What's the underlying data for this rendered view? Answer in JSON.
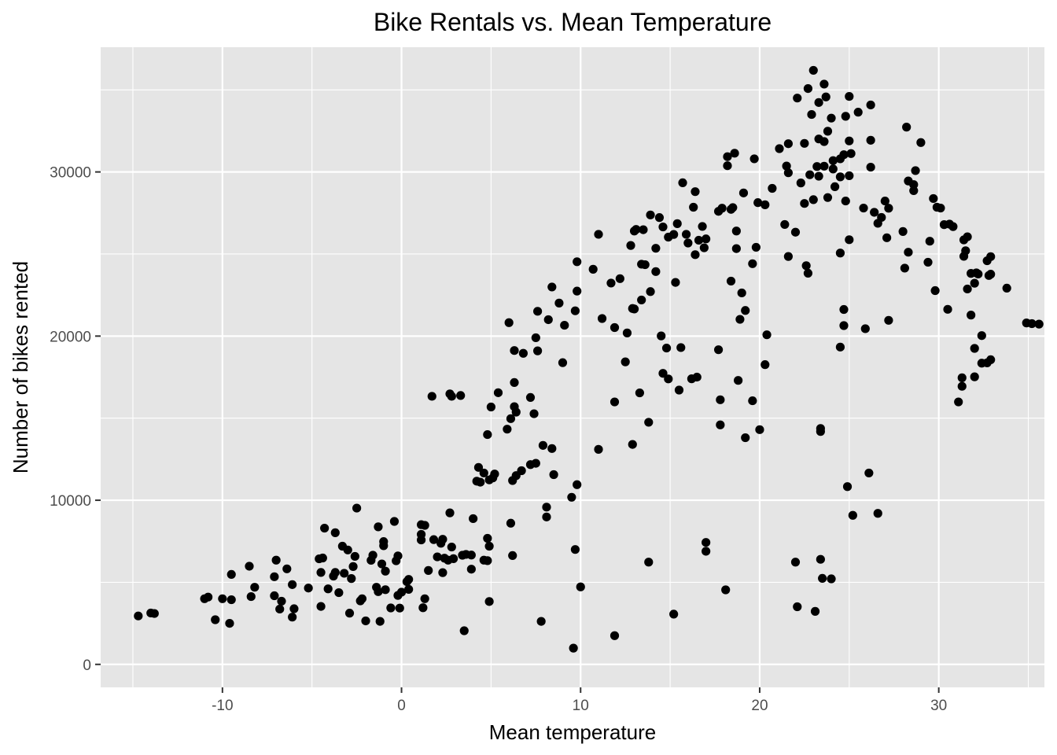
{
  "chart_data": {
    "type": "scatter",
    "title": "Bike Rentals vs. Mean Temperature",
    "xlabel": "Mean temperature",
    "ylabel": "Number of bikes rented",
    "xlim": [
      -16.8,
      35.9
    ],
    "ylim": [
      -1400,
      37600
    ],
    "x_ticks": [
      -10,
      0,
      10,
      20,
      30
    ],
    "y_ticks": [
      0,
      10000,
      20000,
      30000
    ],
    "x_tick_labels": [
      "-10",
      "0",
      "10",
      "20",
      "30"
    ],
    "y_tick_labels": [
      "0",
      "10000",
      "20000",
      "30000"
    ],
    "grid": true,
    "background": "#e5e5e5",
    "point_color": "#000000",
    "points": [
      [
        -14.7,
        2950
      ],
      [
        -14.0,
        3130
      ],
      [
        -13.8,
        3100
      ],
      [
        -11.0,
        4000
      ],
      [
        -10.8,
        4100
      ],
      [
        -10.4,
        2720
      ],
      [
        -10.0,
        4000
      ],
      [
        -9.5,
        5480
      ],
      [
        -9.5,
        3940
      ],
      [
        -9.6,
        2500
      ],
      [
        -8.5,
        5980
      ],
      [
        -8.4,
        4130
      ],
      [
        -8.2,
        4700
      ],
      [
        -7.1,
        5340
      ],
      [
        -7.0,
        6350
      ],
      [
        -7.1,
        4180
      ],
      [
        -6.8,
        3370
      ],
      [
        -6.7,
        3850
      ],
      [
        -6.4,
        5820
      ],
      [
        -6.1,
        4860
      ],
      [
        -6.1,
        2880
      ],
      [
        -6.0,
        3390
      ],
      [
        -5.2,
        4650
      ],
      [
        -4.6,
        6430
      ],
      [
        -4.5,
        3530
      ],
      [
        -4.5,
        5600
      ],
      [
        -4.4,
        6480
      ],
      [
        -4.3,
        8300
      ],
      [
        -4.1,
        4600
      ],
      [
        -3.7,
        8020
      ],
      [
        -3.8,
        5380
      ],
      [
        -3.7,
        5600
      ],
      [
        -3.5,
        4370
      ],
      [
        -3.3,
        7200
      ],
      [
        -3.2,
        5550
      ],
      [
        -3.0,
        6970
      ],
      [
        -2.9,
        3120
      ],
      [
        -2.8,
        5230
      ],
      [
        -2.6,
        6580
      ],
      [
        -2.5,
        9520
      ],
      [
        -2.7,
        5960
      ],
      [
        -2.3,
        3870
      ],
      [
        -2.2,
        4000
      ],
      [
        -2.0,
        2650
      ],
      [
        -1.7,
        6340
      ],
      [
        -1.6,
        6650
      ],
      [
        -1.4,
        4700
      ],
      [
        -1.3,
        8380
      ],
      [
        -1.3,
        4430
      ],
      [
        -1.2,
        2620
      ],
      [
        -1.1,
        6120
      ],
      [
        -1.0,
        7480
      ],
      [
        -1.0,
        7230
      ],
      [
        -0.9,
        5680
      ],
      [
        -0.9,
        4550
      ],
      [
        -0.6,
        3440
      ],
      [
        -0.4,
        8710
      ],
      [
        -0.3,
        6310
      ],
      [
        -0.2,
        6610
      ],
      [
        -0.2,
        4200
      ],
      [
        -0.1,
        3430
      ],
      [
        0.0,
        4400
      ],
      [
        0.3,
        5040
      ],
      [
        0.4,
        4570
      ],
      [
        0.4,
        5180
      ],
      [
        1.1,
        7920
      ],
      [
        1.1,
        8510
      ],
      [
        1.1,
        7580
      ],
      [
        1.2,
        3450
      ],
      [
        1.3,
        8470
      ],
      [
        1.3,
        4000
      ],
      [
        1.5,
        5720
      ],
      [
        1.7,
        16330
      ],
      [
        1.8,
        7600
      ],
      [
        2.0,
        6550
      ],
      [
        2.2,
        7380
      ],
      [
        2.3,
        7620
      ],
      [
        2.3,
        5590
      ],
      [
        2.4,
        6470
      ],
      [
        2.6,
        6350
      ],
      [
        2.7,
        16480
      ],
      [
        2.7,
        9230
      ],
      [
        2.8,
        16330
      ],
      [
        2.8,
        7150
      ],
      [
        2.9,
        6440
      ],
      [
        3.3,
        16380
      ],
      [
        3.4,
        6650
      ],
      [
        3.5,
        2050
      ],
      [
        3.6,
        6700
      ],
      [
        3.9,
        6660
      ],
      [
        3.9,
        5800
      ],
      [
        4.0,
        8880
      ],
      [
        4.2,
        11160
      ],
      [
        4.3,
        12000
      ],
      [
        4.4,
        11100
      ],
      [
        4.6,
        6350
      ],
      [
        4.6,
        11660
      ],
      [
        4.8,
        7680
      ],
      [
        4.8,
        6320
      ],
      [
        4.8,
        14000
      ],
      [
        4.9,
        11240
      ],
      [
        4.9,
        7200
      ],
      [
        4.9,
        3830
      ],
      [
        5.0,
        15680
      ],
      [
        5.1,
        11360
      ],
      [
        5.2,
        11600
      ],
      [
        5.4,
        16550
      ],
      [
        5.9,
        14330
      ],
      [
        6.0,
        20820
      ],
      [
        6.1,
        14970
      ],
      [
        6.1,
        8600
      ],
      [
        6.2,
        6630
      ],
      [
        6.2,
        11200
      ],
      [
        6.3,
        15700
      ],
      [
        6.3,
        19120
      ],
      [
        6.3,
        17170
      ],
      [
        6.4,
        11500
      ],
      [
        6.4,
        15370
      ],
      [
        6.7,
        11800
      ],
      [
        6.8,
        18950
      ],
      [
        7.2,
        16260
      ],
      [
        7.2,
        12170
      ],
      [
        7.4,
        15270
      ],
      [
        7.5,
        12250
      ],
      [
        7.5,
        19900
      ],
      [
        7.6,
        19100
      ],
      [
        7.6,
        21510
      ],
      [
        7.8,
        2620
      ],
      [
        7.9,
        13340
      ],
      [
        8.1,
        9580
      ],
      [
        8.1,
        8980
      ],
      [
        8.2,
        21000
      ],
      [
        8.4,
        22990
      ],
      [
        8.4,
        13150
      ],
      [
        8.5,
        11560
      ],
      [
        8.8,
        22010
      ],
      [
        9.0,
        18380
      ],
      [
        9.1,
        20660
      ],
      [
        9.5,
        10180
      ],
      [
        9.6,
        990
      ],
      [
        9.7,
        21540
      ],
      [
        9.7,
        7000
      ],
      [
        9.8,
        10950
      ],
      [
        9.8,
        22740
      ],
      [
        9.8,
        24530
      ],
      [
        10.0,
        4720
      ],
      [
        10.7,
        24070
      ],
      [
        11.0,
        13100
      ],
      [
        11.0,
        26200
      ],
      [
        11.2,
        21070
      ],
      [
        11.7,
        23230
      ],
      [
        11.9,
        15990
      ],
      [
        11.9,
        20520
      ],
      [
        11.9,
        1750
      ],
      [
        12.2,
        23500
      ],
      [
        12.5,
        18430
      ],
      [
        12.6,
        20190
      ],
      [
        12.8,
        25520
      ],
      [
        12.9,
        21680
      ],
      [
        12.9,
        13400
      ],
      [
        13.0,
        21650
      ],
      [
        13.0,
        26400
      ],
      [
        13.1,
        26500
      ],
      [
        13.3,
        16540
      ],
      [
        13.4,
        24380
      ],
      [
        13.4,
        22200
      ],
      [
        13.5,
        26480
      ],
      [
        13.6,
        24350
      ],
      [
        13.8,
        6230
      ],
      [
        13.8,
        14750
      ],
      [
        13.9,
        22710
      ],
      [
        13.9,
        27380
      ],
      [
        14.2,
        23930
      ],
      [
        14.2,
        25350
      ],
      [
        14.4,
        27220
      ],
      [
        14.5,
        20010
      ],
      [
        14.6,
        17730
      ],
      [
        14.6,
        26650
      ],
      [
        14.8,
        19270
      ],
      [
        14.9,
        17390
      ],
      [
        14.9,
        26030
      ],
      [
        15.2,
        3060
      ],
      [
        15.2,
        26190
      ],
      [
        15.3,
        23270
      ],
      [
        15.4,
        26850
      ],
      [
        15.5,
        16710
      ],
      [
        15.6,
        19300
      ],
      [
        15.7,
        29340
      ],
      [
        15.9,
        26200
      ],
      [
        16.0,
        25670
      ],
      [
        16.2,
        17400
      ],
      [
        16.5,
        17500
      ],
      [
        16.3,
        27850
      ],
      [
        16.4,
        28800
      ],
      [
        16.4,
        24960
      ],
      [
        16.6,
        25840
      ],
      [
        16.8,
        26680
      ],
      [
        16.9,
        25380
      ],
      [
        17.0,
        25920
      ],
      [
        17.0,
        7430
      ],
      [
        17.0,
        6890
      ],
      [
        17.7,
        27600
      ],
      [
        17.7,
        19170
      ],
      [
        17.8,
        16120
      ],
      [
        17.8,
        14590
      ],
      [
        17.9,
        27790
      ],
      [
        18.1,
        4540
      ],
      [
        18.2,
        30930
      ],
      [
        18.2,
        30380
      ],
      [
        18.4,
        27720
      ],
      [
        18.4,
        23350
      ],
      [
        18.5,
        27830
      ],
      [
        18.6,
        31140
      ],
      [
        18.7,
        26400
      ],
      [
        18.7,
        25330
      ],
      [
        18.8,
        17300
      ],
      [
        18.9,
        21020
      ],
      [
        19.0,
        22630
      ],
      [
        19.1,
        28720
      ],
      [
        19.2,
        13810
      ],
      [
        19.2,
        21560
      ],
      [
        19.6,
        24410
      ],
      [
        19.6,
        16060
      ],
      [
        19.7,
        30800
      ],
      [
        19.8,
        25410
      ],
      [
        19.9,
        28130
      ],
      [
        20.0,
        14300
      ],
      [
        20.3,
        28000
      ],
      [
        20.3,
        18260
      ],
      [
        20.4,
        20080
      ],
      [
        20.7,
        29000
      ],
      [
        21.1,
        31420
      ],
      [
        21.4,
        26800
      ],
      [
        21.5,
        30360
      ],
      [
        21.6,
        29950
      ],
      [
        21.6,
        31720
      ],
      [
        21.6,
        24850
      ],
      [
        22.0,
        26330
      ],
      [
        22.0,
        6230
      ],
      [
        22.1,
        3510
      ],
      [
        22.1,
        34500
      ],
      [
        22.3,
        29330
      ],
      [
        22.5,
        28080
      ],
      [
        22.5,
        31740
      ],
      [
        22.6,
        24290
      ],
      [
        22.7,
        23830
      ],
      [
        22.7,
        35080
      ],
      [
        22.8,
        29830
      ],
      [
        22.9,
        33500
      ],
      [
        23.0,
        28310
      ],
      [
        23.0,
        36190
      ],
      [
        23.1,
        3230
      ],
      [
        23.2,
        30330
      ],
      [
        23.3,
        29740
      ],
      [
        23.3,
        32010
      ],
      [
        23.3,
        34230
      ],
      [
        23.4,
        14190
      ],
      [
        23.4,
        14370
      ],
      [
        23.4,
        6400
      ],
      [
        23.5,
        5240
      ],
      [
        23.6,
        30350
      ],
      [
        23.6,
        31850
      ],
      [
        23.6,
        35350
      ],
      [
        23.7,
        34570
      ],
      [
        23.8,
        32480
      ],
      [
        23.8,
        28440
      ],
      [
        24.0,
        5210
      ],
      [
        24.0,
        33280
      ],
      [
        24.1,
        30690
      ],
      [
        24.1,
        30180
      ],
      [
        24.2,
        29100
      ],
      [
        24.5,
        25060
      ],
      [
        24.5,
        19330
      ],
      [
        24.5,
        29700
      ],
      [
        24.5,
        30800
      ],
      [
        24.7,
        21620
      ],
      [
        24.7,
        20640
      ],
      [
        24.7,
        31050
      ],
      [
        24.8,
        33390
      ],
      [
        24.8,
        28230
      ],
      [
        24.9,
        10830
      ],
      [
        25.0,
        34600
      ],
      [
        25.0,
        29770
      ],
      [
        25.0,
        25870
      ],
      [
        25.0,
        31890
      ],
      [
        25.1,
        31120
      ],
      [
        25.2,
        9080
      ],
      [
        25.5,
        33640
      ],
      [
        25.8,
        27800
      ],
      [
        25.9,
        20450
      ],
      [
        26.1,
        11660
      ],
      [
        26.2,
        31930
      ],
      [
        26.2,
        34080
      ],
      [
        26.2,
        30290
      ],
      [
        26.4,
        27540
      ],
      [
        26.6,
        9200
      ],
      [
        26.6,
        26870
      ],
      [
        26.8,
        27230
      ],
      [
        27.0,
        28230
      ],
      [
        27.1,
        25990
      ],
      [
        27.2,
        27790
      ],
      [
        27.2,
        20960
      ],
      [
        28.0,
        26370
      ],
      [
        28.1,
        24140
      ],
      [
        28.2,
        32730
      ],
      [
        28.3,
        29450
      ],
      [
        28.3,
        25110
      ],
      [
        28.6,
        28860
      ],
      [
        28.6,
        29230
      ],
      [
        28.7,
        30080
      ],
      [
        29.0,
        31790
      ],
      [
        29.4,
        24500
      ],
      [
        29.5,
        25780
      ],
      [
        29.7,
        28380
      ],
      [
        29.8,
        22770
      ],
      [
        29.9,
        27850
      ],
      [
        30.1,
        27800
      ],
      [
        30.3,
        26790
      ],
      [
        30.5,
        21630
      ],
      [
        30.6,
        26820
      ],
      [
        30.8,
        26670
      ],
      [
        31.1,
        15990
      ],
      [
        31.3,
        17460
      ],
      [
        31.3,
        16940
      ],
      [
        31.4,
        24860
      ],
      [
        31.4,
        25860
      ],
      [
        31.5,
        25200
      ],
      [
        31.6,
        22870
      ],
      [
        31.6,
        26050
      ],
      [
        31.8,
        23820
      ],
      [
        31.8,
        21280
      ],
      [
        32.0,
        17520
      ],
      [
        32.0,
        23220
      ],
      [
        32.0,
        19250
      ],
      [
        32.1,
        23850
      ],
      [
        32.2,
        23780
      ],
      [
        32.4,
        20030
      ],
      [
        32.4,
        18350
      ],
      [
        32.7,
        24590
      ],
      [
        32.7,
        18370
      ],
      [
        32.8,
        23690
      ],
      [
        32.9,
        24840
      ],
      [
        32.9,
        23770
      ],
      [
        32.9,
        18560
      ],
      [
        33.8,
        22920
      ],
      [
        34.9,
        20800
      ],
      [
        35.2,
        20760
      ],
      [
        35.6,
        20730
      ]
    ]
  }
}
